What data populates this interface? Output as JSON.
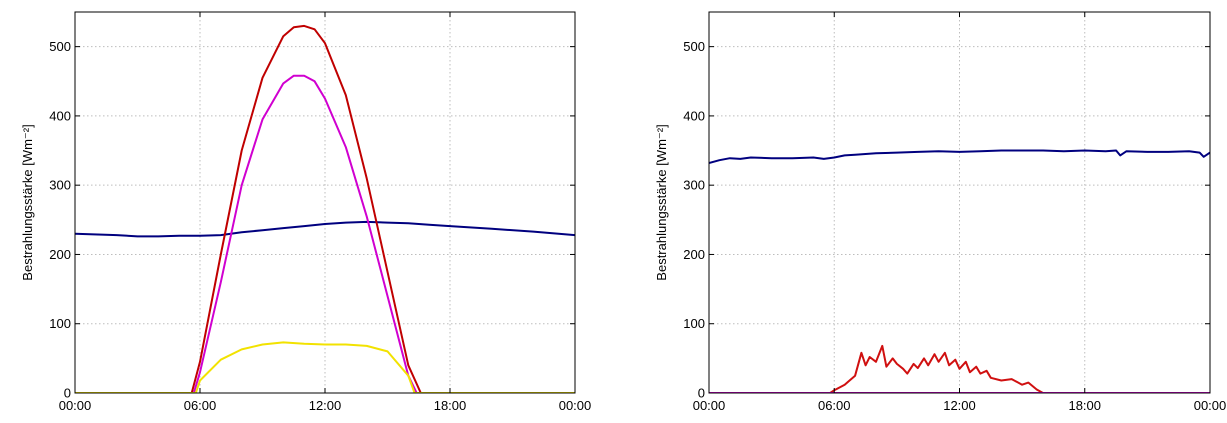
{
  "chart_data": [
    {
      "type": "line",
      "ylabel": "Bestrahlungsstärke [Wm⁻²]",
      "x_tick_labels": [
        "00:00",
        "06:00",
        "12:00",
        "18:00",
        "00:00"
      ],
      "x_ticks_hours": [
        0,
        6,
        12,
        18,
        24
      ],
      "xlim": [
        0,
        24
      ],
      "ylim": [
        0,
        550
      ],
      "y_ticks": [
        0,
        100,
        200,
        300,
        400,
        500
      ],
      "grid": true,
      "series": [
        {
          "color": "#00007f",
          "x": [
            0,
            2,
            3,
            4,
            5,
            6,
            7,
            8,
            9,
            10,
            11,
            12,
            13,
            14,
            15,
            16,
            17,
            18,
            20,
            22,
            24
          ],
          "y": [
            230,
            228,
            226,
            226,
            227,
            227,
            228,
            232,
            235,
            238,
            241,
            244,
            246,
            247,
            246,
            245,
            243,
            241,
            237,
            233,
            228
          ]
        },
        {
          "color": "#c00000",
          "x": [
            0,
            5.6,
            6,
            7,
            8,
            9,
            10,
            10.5,
            11,
            11.5,
            12,
            13,
            14,
            15,
            16,
            16.6,
            24
          ],
          "y": [
            0,
            0,
            45,
            200,
            350,
            455,
            515,
            528,
            530,
            525,
            505,
            430,
            310,
            175,
            40,
            0,
            0
          ]
        },
        {
          "color": "#d000d0",
          "x": [
            0,
            5.7,
            6,
            7,
            8,
            9,
            10,
            10.5,
            11,
            11.5,
            12,
            13,
            14,
            15,
            16,
            16.4,
            24
          ],
          "y": [
            0,
            0,
            30,
            160,
            300,
            395,
            447,
            458,
            458,
            450,
            425,
            355,
            255,
            140,
            25,
            0,
            0
          ]
        },
        {
          "color": "#f2e200",
          "x": [
            0,
            5.8,
            6,
            7,
            8,
            9,
            10,
            11,
            12,
            13,
            14,
            15,
            16,
            16.3,
            24
          ],
          "y": [
            0,
            0,
            18,
            48,
            63,
            70,
            73,
            71,
            70,
            70,
            68,
            60,
            25,
            0,
            0
          ]
        }
      ]
    },
    {
      "type": "line",
      "ylabel": "Bestrahlungsstärke [Wm⁻²]",
      "x_tick_labels": [
        "00:00",
        "06:00",
        "12:00",
        "18:00",
        "00:00"
      ],
      "x_ticks_hours": [
        0,
        6,
        12,
        18,
        24
      ],
      "xlim": [
        0,
        24
      ],
      "ylim": [
        0,
        550
      ],
      "y_ticks": [
        0,
        100,
        200,
        300,
        400,
        500
      ],
      "grid": true,
      "series": [
        {
          "color": "#00007f",
          "x": [
            0,
            0.5,
            1,
            1.5,
            2,
            3,
            4,
            5,
            5.5,
            6,
            6.5,
            7,
            8,
            9,
            10,
            11,
            12,
            13,
            14,
            15,
            16,
            17,
            18,
            19,
            19.5,
            19.7,
            20,
            21,
            22,
            23,
            23.5,
            23.7,
            24
          ],
          "y": [
            332,
            336,
            339,
            338,
            340,
            339,
            339,
            340,
            338,
            340,
            343,
            344,
            346,
            347,
            348,
            349,
            348,
            349,
            350,
            350,
            350,
            349,
            350,
            349,
            350,
            343,
            349,
            348,
            348,
            349,
            347,
            341,
            347
          ]
        },
        {
          "color": "#d01010",
          "x": [
            0,
            5.8,
            6,
            6.5,
            7,
            7.3,
            7.5,
            7.7,
            8,
            8.3,
            8.5,
            8.8,
            9,
            9.3,
            9.5,
            9.8,
            10,
            10.3,
            10.5,
            10.8,
            11,
            11.3,
            11.5,
            11.8,
            12,
            12.3,
            12.5,
            12.8,
            13,
            13.3,
            13.5,
            14,
            14.5,
            15,
            15.3,
            15.7,
            16,
            24
          ],
          "y": [
            0,
            0,
            4,
            12,
            25,
            58,
            40,
            52,
            45,
            68,
            38,
            50,
            42,
            35,
            28,
            42,
            36,
            50,
            40,
            56,
            45,
            58,
            40,
            48,
            35,
            45,
            30,
            38,
            28,
            32,
            22,
            18,
            20,
            12,
            15,
            5,
            0,
            0
          ]
        },
        {
          "color": "#d000d0",
          "x": [
            0,
            24
          ],
          "y": [
            0,
            0
          ]
        }
      ]
    }
  ]
}
